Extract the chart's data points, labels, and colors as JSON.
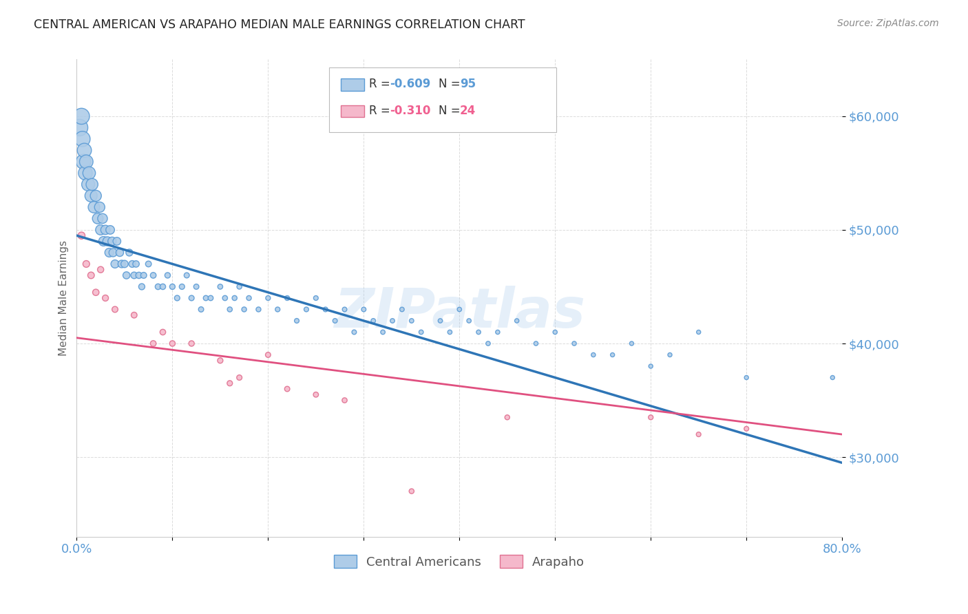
{
  "title": "CENTRAL AMERICAN VS ARAPAHO MEDIAN MALE EARNINGS CORRELATION CHART",
  "source": "Source: ZipAtlas.com",
  "ylabel": "Median Male Earnings",
  "ytick_labels": [
    "$30,000",
    "$40,000",
    "$50,000",
    "$60,000"
  ],
  "ytick_values": [
    30000,
    40000,
    50000,
    60000
  ],
  "ytick_color": "#5b9bd5",
  "watermark": "ZIPatlas",
  "legend_label1": "Central Americans",
  "legend_label2": "Arapaho",
  "legend_color1": "#5b9bd5",
  "legend_color2": "#f06090",
  "line1_color": "#2e75b6",
  "line2_color": "#e05080",
  "dot1_facecolor": "#aecce8",
  "dot2_facecolor": "#f5b8cb",
  "dot1_edgecolor": "#5b9bd5",
  "dot2_edgecolor": "#e07090",
  "xmin": 0.0,
  "xmax": 0.8,
  "ymin": 23000,
  "ymax": 65000,
  "blue_x": [
    0.003,
    0.005,
    0.006,
    0.007,
    0.008,
    0.009,
    0.01,
    0.012,
    0.013,
    0.015,
    0.016,
    0.018,
    0.02,
    0.022,
    0.024,
    0.025,
    0.027,
    0.028,
    0.03,
    0.032,
    0.034,
    0.035,
    0.037,
    0.038,
    0.04,
    0.042,
    0.045,
    0.047,
    0.05,
    0.052,
    0.055,
    0.058,
    0.06,
    0.062,
    0.065,
    0.068,
    0.07,
    0.075,
    0.08,
    0.085,
    0.09,
    0.095,
    0.1,
    0.105,
    0.11,
    0.115,
    0.12,
    0.125,
    0.13,
    0.135,
    0.14,
    0.15,
    0.155,
    0.16,
    0.165,
    0.17,
    0.175,
    0.18,
    0.19,
    0.2,
    0.21,
    0.22,
    0.23,
    0.24,
    0.25,
    0.26,
    0.27,
    0.28,
    0.29,
    0.3,
    0.31,
    0.32,
    0.33,
    0.34,
    0.35,
    0.36,
    0.38,
    0.39,
    0.4,
    0.41,
    0.42,
    0.43,
    0.44,
    0.46,
    0.48,
    0.5,
    0.52,
    0.54,
    0.56,
    0.58,
    0.6,
    0.62,
    0.65,
    0.7,
    0.79
  ],
  "blue_y": [
    59000,
    60000,
    58000,
    56000,
    57000,
    55000,
    56000,
    54000,
    55000,
    53000,
    54000,
    52000,
    53000,
    51000,
    52000,
    50000,
    51000,
    49000,
    50000,
    49000,
    48000,
    50000,
    49000,
    48000,
    47000,
    49000,
    48000,
    47000,
    47000,
    46000,
    48000,
    47000,
    46000,
    47000,
    46000,
    45000,
    46000,
    47000,
    46000,
    45000,
    45000,
    46000,
    45000,
    44000,
    45000,
    46000,
    44000,
    45000,
    43000,
    44000,
    44000,
    45000,
    44000,
    43000,
    44000,
    45000,
    43000,
    44000,
    43000,
    44000,
    43000,
    44000,
    42000,
    43000,
    44000,
    43000,
    42000,
    43000,
    41000,
    43000,
    42000,
    41000,
    42000,
    43000,
    42000,
    41000,
    42000,
    41000,
    43000,
    42000,
    41000,
    40000,
    41000,
    42000,
    40000,
    41000,
    40000,
    39000,
    39000,
    40000,
    38000,
    39000,
    41000,
    37000,
    37000
  ],
  "blue_sizes": [
    300,
    280,
    260,
    240,
    220,
    210,
    200,
    185,
    175,
    165,
    155,
    145,
    135,
    125,
    118,
    112,
    105,
    100,
    95,
    90,
    85,
    82,
    78,
    75,
    72,
    68,
    65,
    62,
    58,
    55,
    52,
    50,
    48,
    46,
    44,
    42,
    40,
    38,
    37,
    36,
    35,
    34,
    33,
    32,
    32,
    31,
    31,
    30,
    30,
    29,
    29,
    28,
    28,
    27,
    27,
    27,
    26,
    26,
    26,
    25,
    25,
    25,
    24,
    24,
    24,
    24,
    23,
    23,
    23,
    23,
    23,
    22,
    22,
    22,
    22,
    22,
    21,
    21,
    21,
    21,
    21,
    21,
    20,
    20,
    20,
    20,
    20,
    20,
    19,
    19,
    19,
    19,
    19,
    19,
    19
  ],
  "pink_x": [
    0.005,
    0.01,
    0.015,
    0.02,
    0.025,
    0.03,
    0.04,
    0.06,
    0.08,
    0.09,
    0.1,
    0.12,
    0.15,
    0.16,
    0.17,
    0.2,
    0.22,
    0.25,
    0.28,
    0.35,
    0.45,
    0.6,
    0.65,
    0.7
  ],
  "pink_y": [
    49500,
    47000,
    46000,
    44500,
    46500,
    44000,
    43000,
    42500,
    40000,
    41000,
    40000,
    40000,
    38500,
    36500,
    37000,
    39000,
    36000,
    35500,
    35000,
    27000,
    33500,
    33500,
    32000,
    32500
  ],
  "pink_sizes": [
    55,
    50,
    48,
    45,
    43,
    41,
    39,
    38,
    37,
    36,
    35,
    34,
    33,
    32,
    31,
    30,
    30,
    29,
    28,
    27,
    26,
    25,
    24,
    24
  ],
  "line1_x": [
    0.0,
    0.8
  ],
  "line1_y": [
    49500,
    29500
  ],
  "line2_x": [
    0.0,
    0.8
  ],
  "line2_y": [
    40500,
    32000
  ],
  "grid_color": "#cccccc",
  "background_color": "#ffffff"
}
